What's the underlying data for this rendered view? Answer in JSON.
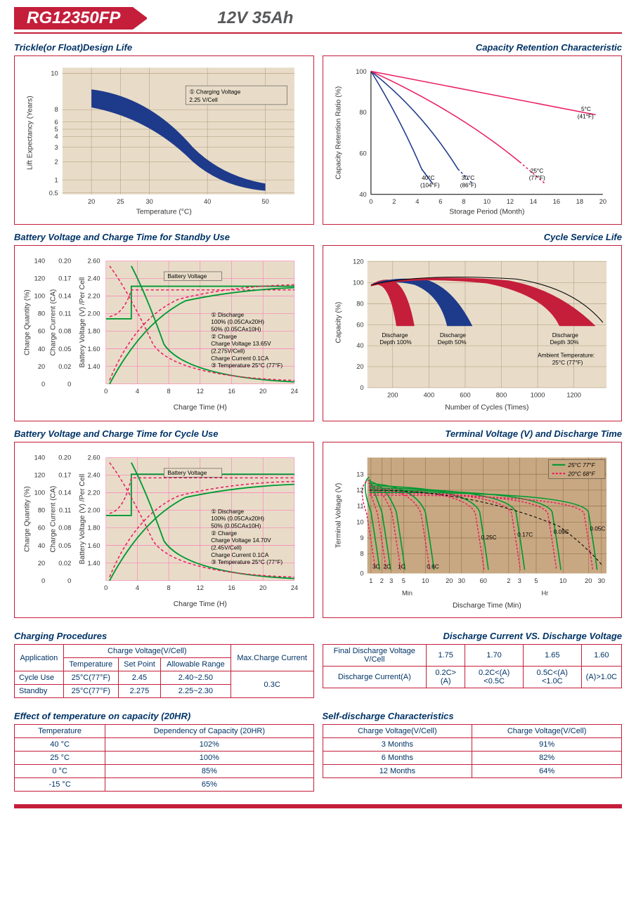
{
  "header": {
    "model": "RG12350FP",
    "spec": "12V  35Ah"
  },
  "chart1": {
    "title": "Trickle(or Float)Design Life",
    "xlabel": "Temperature (°C)",
    "ylabel": "Lift  Expectancy (Years)",
    "xticks": [
      "20",
      "25",
      "30",
      "40",
      "50"
    ],
    "yticks": [
      "0.5",
      "1",
      "2",
      "3",
      "4",
      "5",
      "6",
      "8",
      "10"
    ],
    "annot": "① Charging Voltage\n2.25 V/Cell",
    "band_color": "#1e3a8a",
    "bg": "#e8dcc8"
  },
  "chart2": {
    "title": "Capacity Retention Characteristic",
    "xlabel": "Storage Period (Month)",
    "ylabel": "Capacity Retention Ratio (%)",
    "xticks": [
      "0",
      "2",
      "4",
      "6",
      "8",
      "10",
      "12",
      "14",
      "16",
      "18",
      "20"
    ],
    "yticks": [
      "40",
      "60",
      "80",
      "100"
    ],
    "curves": [
      {
        "label": "40°C (104°F)",
        "color": "#1e3a8a"
      },
      {
        "label": "30°C (86°F)",
        "color": "#1e3a8a"
      },
      {
        "label": "25°C (77°F)",
        "color": "#e91e63"
      },
      {
        "label": "5°C (41°F)",
        "color": "#e91e63"
      }
    ]
  },
  "chart3": {
    "title": "Battery Voltage and Charge Time for Standby Use",
    "xlabel": "Charge Time (H)",
    "y1label": "Charge Quantity (%)",
    "y2label": "Charge Current (CA)",
    "y3label": "Battery Voltage (V) /Per Cell",
    "xticks": [
      "0",
      "4",
      "8",
      "12",
      "16",
      "20",
      "24"
    ],
    "y1ticks": [
      "0",
      "20",
      "40",
      "60",
      "80",
      "100",
      "120",
      "140"
    ],
    "y2ticks": [
      "0",
      "0.02",
      "0.05",
      "0.08",
      "0.11",
      "0.14",
      "0.17",
      "0.20"
    ],
    "y3ticks": [
      "",
      "1.40",
      "1.60",
      "1.80",
      "2.00",
      "2.20",
      "2.40",
      "2.60"
    ],
    "legend": "Battery Voltage",
    "annot_lines": [
      "① Discharge",
      "100% (0.05CAx20H)",
      "50% (0.05CAx10H)",
      "② Charge",
      "Charge Voltage 13.65V",
      "(2.275V/Cell)",
      "Charge Current 0.1CA",
      "③ Temperature 25°C (77°F)"
    ],
    "line_color_solid": "#009933",
    "line_color_dash": "#e91e63"
  },
  "chart4": {
    "title": "Cycle Service Life",
    "xlabel": "Number of Cycles (Times)",
    "ylabel": "Capacity (%)",
    "xticks": [
      "200",
      "400",
      "600",
      "800",
      "1000",
      "1200"
    ],
    "yticks": [
      "0",
      "20",
      "40",
      "60",
      "80",
      "100",
      "120"
    ],
    "annot": "Ambient Temperature:\n25°C (77°F)",
    "fills": [
      {
        "label": "Discharge Depth 100%",
        "color": "#c41e3a"
      },
      {
        "label": "Discharge Depth 50%",
        "color": "#1e3a8a"
      },
      {
        "label": "Discharge Depth 30%",
        "color": "#c41e3a"
      }
    ]
  },
  "chart5": {
    "title": "Battery Voltage and Charge Time for Cycle Use",
    "xlabel": "Charge Time (H)",
    "y1label": "Charge Quantity (%)",
    "y2label": "Charge Current (CA)",
    "y3label": "Battery Voltage (V) /Per Cell",
    "xticks": [
      "0",
      "4",
      "8",
      "12",
      "16",
      "20",
      "24"
    ],
    "y1ticks": [
      "0",
      "20",
      "40",
      "60",
      "80",
      "100",
      "120",
      "140"
    ],
    "y2ticks": [
      "0",
      "0.02",
      "0.05",
      "0.08",
      "0.11",
      "0.14",
      "0.17",
      "0.20"
    ],
    "y3ticks": [
      "",
      "1.40",
      "1.60",
      "1.80",
      "2.00",
      "2.20",
      "2.40",
      "2.60"
    ],
    "legend": "Battery Voltage",
    "annot_lines": [
      "① Discharge",
      "100% (0.05CAx20H)",
      "50% (0.05CAx10H)",
      "② Charge",
      "Charge Voltage 14.70V",
      "(2.45V/Cell)",
      "Charge Current 0.1CA",
      "③ Temperature 25°C (77°F)"
    ],
    "line_color_solid": "#009933",
    "line_color_dash": "#e91e63"
  },
  "chart6": {
    "title": "Terminal Voltage (V) and Discharge Time",
    "xlabel": "Discharge Time (Min)",
    "ylabel": "Terminal Voltage (V)",
    "yticks": [
      "0",
      "8",
      "9",
      "10",
      "11",
      "12",
      "13"
    ],
    "xlabels_min": [
      "1",
      "2",
      "3",
      "5",
      "10",
      "20",
      "30",
      "60"
    ],
    "xlabels_hr": [
      "2",
      "3",
      "5",
      "10",
      "20",
      "30"
    ],
    "leg25": "25°C 77°F",
    "leg20": "20°C 68°F",
    "rates": [
      "3C",
      "2C",
      "1C",
      "0.6C",
      "0.25C",
      "0.17C",
      "0.09C",
      "0.05C"
    ],
    "solid_color": "#009933",
    "dash_color": "#e91e63",
    "bg": "#c8a882"
  },
  "table1": {
    "title": "Charging Procedures",
    "h_app": "Application",
    "h_cv": "Charge Voltage(V/Cell)",
    "h_temp": "Temperature",
    "h_set": "Set Point",
    "h_range": "Allowable Range",
    "h_max": "Max.Charge Current",
    "rows": [
      {
        "app": "Cycle Use",
        "temp": "25°C(77°F)",
        "set": "2.45",
        "range": "2.40~2.50"
      },
      {
        "app": "Standby",
        "temp": "25°C(77°F)",
        "set": "2.275",
        "range": "2.25~2.30"
      }
    ],
    "max": "0.3C"
  },
  "table2": {
    "title": "Discharge Current VS. Discharge Voltage",
    "h_fdv": "Final Discharge Voltage V/Cell",
    "h_dc": "Discharge Current(A)",
    "cols": [
      "1.75",
      "1.70",
      "1.65",
      "1.60"
    ],
    "vals": [
      "0.2C>(A)",
      "0.2C<(A)<0.5C",
      "0.5C<(A)<1.0C",
      "(A)>1.0C"
    ]
  },
  "table3": {
    "title": "Effect of temperature on capacity (20HR)",
    "h1": "Temperature",
    "h2": "Dependency of Capacity (20HR)",
    "rows": [
      [
        "40 °C",
        "102%"
      ],
      [
        "25 °C",
        "100%"
      ],
      [
        "0 °C",
        "85%"
      ],
      [
        "-15 °C",
        "65%"
      ]
    ]
  },
  "table4": {
    "title": "Self-discharge Characteristics",
    "h1": "Charge Voltage(V/Cell)",
    "h2": "Charge Voltage(V/Cell)",
    "rows": [
      [
        "3 Months",
        "91%"
      ],
      [
        "6 Months",
        "82%"
      ],
      [
        "12 Months",
        "64%"
      ]
    ]
  }
}
